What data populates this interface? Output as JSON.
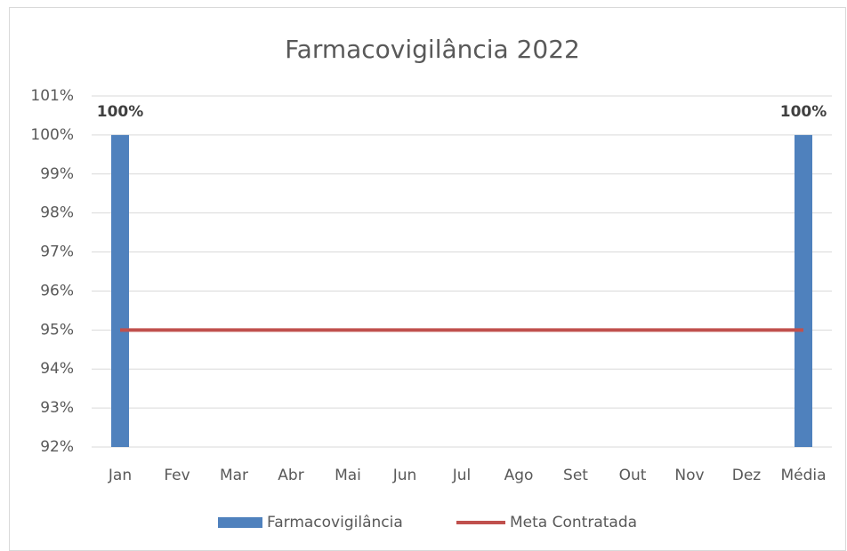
{
  "chart_data": {
    "type": "bar",
    "title": "Farmacovigilância 2022",
    "categories": [
      "Jan",
      "Fev",
      "Mar",
      "Abr",
      "Mai",
      "Jun",
      "Jul",
      "Ago",
      "Set",
      "Out",
      "Nov",
      "Dez",
      "Média"
    ],
    "series": [
      {
        "name": "Farmacovigilância",
        "type": "bar",
        "color": "#4f81bd",
        "values": [
          100,
          null,
          null,
          null,
          null,
          null,
          null,
          null,
          null,
          null,
          null,
          null,
          100
        ],
        "value_labels": [
          "100%",
          null,
          null,
          null,
          null,
          null,
          null,
          null,
          null,
          null,
          null,
          null,
          "100%"
        ]
      },
      {
        "name": "Meta Contratada",
        "type": "line",
        "color": "#c0504d",
        "values": [
          95,
          95,
          95,
          95,
          95,
          95,
          95,
          95,
          95,
          95,
          95,
          95,
          95
        ]
      }
    ],
    "ylim": [
      92,
      101
    ],
    "yticks": [
      {
        "value": 92,
        "label": "92%"
      },
      {
        "value": 93,
        "label": "93%"
      },
      {
        "value": 94,
        "label": "94%"
      },
      {
        "value": 95,
        "label": "95%"
      },
      {
        "value": 96,
        "label": "96%"
      },
      {
        "value": 97,
        "label": "97%"
      },
      {
        "value": 98,
        "label": "98%"
      },
      {
        "value": 99,
        "label": "99%"
      },
      {
        "value": 100,
        "label": "100%"
      },
      {
        "value": 101,
        "label": "101%"
      }
    ],
    "grid": true,
    "legend": "bottom"
  }
}
